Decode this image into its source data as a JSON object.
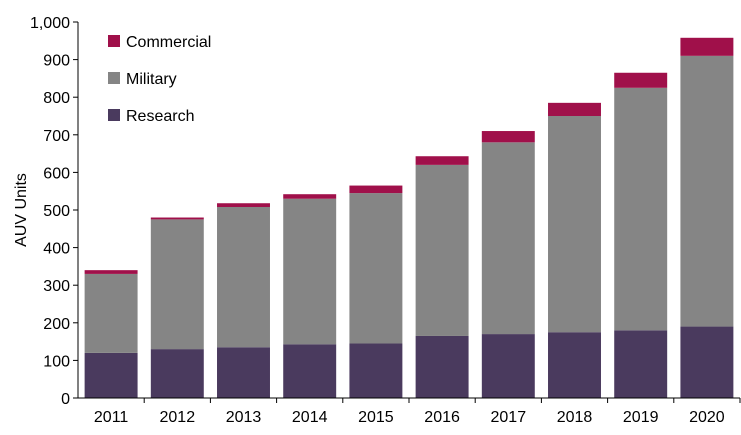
{
  "chart_data": {
    "type": "bar",
    "stacked": true,
    "categories": [
      "2011",
      "2012",
      "2013",
      "2014",
      "2015",
      "2016",
      "2017",
      "2018",
      "2019",
      "2020"
    ],
    "series": [
      {
        "name": "Research",
        "color": "#4a3a5e",
        "values": [
          120,
          130,
          135,
          143,
          145,
          165,
          170,
          175,
          180,
          190
        ]
      },
      {
        "name": "Military",
        "color": "#858585",
        "values": [
          210,
          345,
          373,
          387,
          400,
          455,
          510,
          575,
          645,
          720
        ]
      },
      {
        "name": "Commercial",
        "color": "#a0104a",
        "values": [
          10,
          5,
          10,
          12,
          20,
          23,
          30,
          35,
          40,
          48
        ]
      }
    ],
    "legend_order": [
      "Commercial",
      "Military",
      "Research"
    ],
    "legend_position": "top-left",
    "ylabel": "AUV Units",
    "xlabel": "",
    "title": "",
    "ylim": [
      0,
      1000
    ],
    "yticks": [
      "0",
      "100",
      "200",
      "300",
      "400",
      "500",
      "600",
      "700",
      "800",
      "900",
      "1,000"
    ],
    "grid": false
  }
}
